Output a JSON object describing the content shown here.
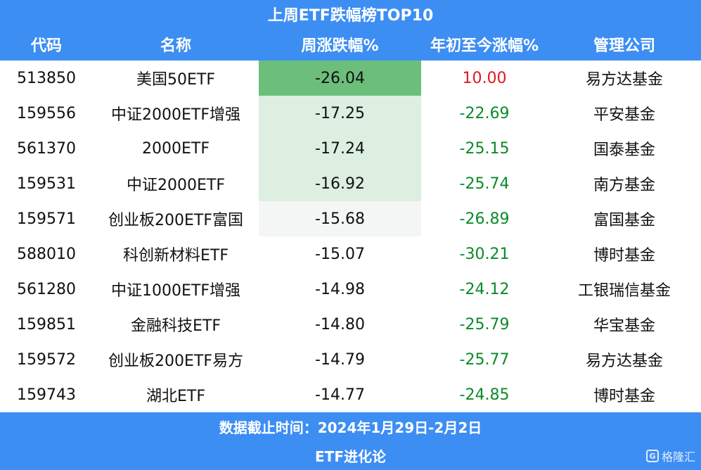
{
  "title": "上周ETF跌幅榜TOP10",
  "headers": {
    "code": "代码",
    "name": "名称",
    "weekly_change": "周涨跌幅%",
    "ytd_change": "年初至今涨幅%",
    "manager": "管理公司"
  },
  "rows": [
    {
      "code": "513850",
      "name": "美国50ETF",
      "weekly": "-26.04",
      "ytd": "10.00",
      "manager": "易方达基金"
    },
    {
      "code": "159556",
      "name": "中证2000ETF增强",
      "weekly": "-17.25",
      "ytd": "-22.69",
      "manager": "平安基金"
    },
    {
      "code": "561370",
      "name": "2000ETF",
      "weekly": "-17.24",
      "ytd": "-25.15",
      "manager": "国泰基金"
    },
    {
      "code": "159531",
      "name": "中证2000ETF",
      "weekly": "-16.92",
      "ytd": "-25.74",
      "manager": "南方基金"
    },
    {
      "code": "159571",
      "name": "创业板200ETF富国",
      "weekly": "-15.68",
      "ytd": "-26.89",
      "manager": "富国基金"
    },
    {
      "code": "588010",
      "name": "科创新材料ETF",
      "weekly": "-15.07",
      "ytd": "-30.21",
      "manager": "博时基金"
    },
    {
      "code": "561280",
      "name": "中证1000ETF增强",
      "weekly": "-14.98",
      "ytd": "-24.12",
      "manager": "工银瑞信基金"
    },
    {
      "code": "159851",
      "name": "金融科技ETF",
      "weekly": "-14.80",
      "ytd": "-25.79",
      "manager": "华宝基金"
    },
    {
      "code": "159572",
      "name": "创业板200ETF易方",
      "weekly": "-14.79",
      "ytd": "-25.77",
      "manager": "易方达基金"
    },
    {
      "code": "159743",
      "name": "湖北ETF",
      "weekly": "-14.77",
      "ytd": "-24.85",
      "manager": "博时基金"
    }
  ],
  "footer": {
    "cutoff": "数据截止时间：2024年1月29日-2月2日",
    "source": "ETF进化论"
  },
  "watermark": {
    "logo_letter": "G",
    "text": "格隆汇"
  },
  "colors": {
    "header_bg": "#3d8ef3",
    "heat_strong": "#6bbf7b",
    "heat_light": "#dcefe1",
    "negative": "#0a8a2a",
    "positive": "#e0181d"
  }
}
